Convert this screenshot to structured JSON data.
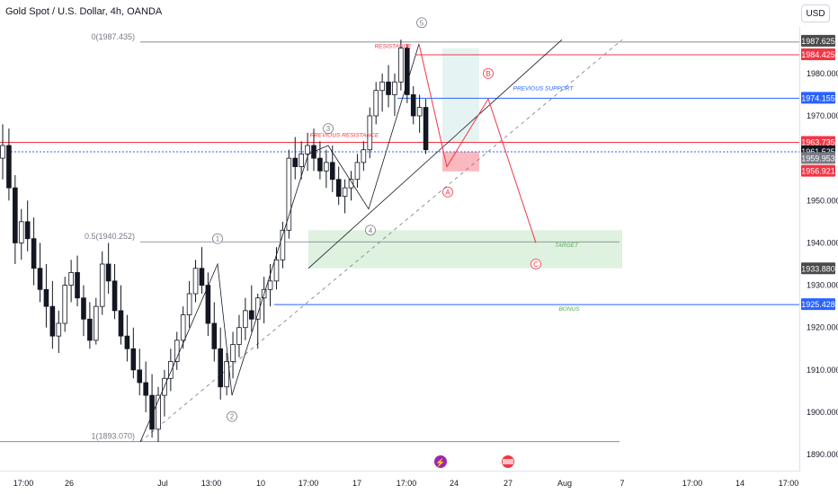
{
  "header": {
    "title": "Gold Spot / U.S. Dollar, 4h, OANDA",
    "currency": "USD"
  },
  "colors": {
    "up": "#ffffff",
    "down": "#131722",
    "red": "#f23645",
    "blue": "#2962ff",
    "green": "#4caf50",
    "grey": "#787b86",
    "black": "#131722"
  },
  "chart_data": {
    "type": "candlestick",
    "ylim": [
      1886,
      1991
    ],
    "y_ticks": [
      "1980.000",
      "1970.000",
      "1950.000",
      "1940.000",
      "1930.000",
      "1920.000",
      "1910.000",
      "1900.000",
      "1890.000"
    ],
    "x_ticks": [
      "17:00",
      "26",
      "Jul",
      "13:00",
      "10",
      "17:00",
      "17",
      "17:00",
      "24",
      "27",
      "Aug",
      "7",
      "17:00",
      "14",
      "17:00"
    ],
    "price_labels": [
      {
        "text": "1987.625",
        "bg": "#4a4a4a"
      },
      {
        "text": "1984.457",
        "bg": "#089981"
      },
      {
        "text": "1984.425",
        "bg": "#f23645"
      },
      {
        "text": "1974.155",
        "bg": "#2962ff"
      },
      {
        "text": "1963.735",
        "bg": "#f23645"
      },
      {
        "text": "1961.525",
        "bg": "#131722"
      },
      {
        "text": "1959.953",
        "bg": "#787b86"
      },
      {
        "text": "1956.921",
        "bg": "#f23645"
      },
      {
        "text": "1933.880",
        "bg": "#4a4a4a"
      },
      {
        "text": "1925.428",
        "bg": "#2962ff"
      }
    ],
    "fib_levels": [
      {
        "label": "0(1987.435)",
        "value": 1987.435
      },
      {
        "label": "0.5(1940.252)",
        "value": 1940.252
      },
      {
        "label": "1(1893.070)",
        "value": 1893.07
      }
    ],
    "levels": [
      {
        "value": 1984.425,
        "color": "#f23645"
      },
      {
        "value": 1974.155,
        "color": "#2962ff"
      },
      {
        "value": 1963.735,
        "color": "#f23645"
      },
      {
        "value": 1961.525,
        "color": "#2962ff"
      },
      {
        "value": 1925.428,
        "color": "#2962ff"
      }
    ],
    "annotations": [
      "RESISTANCE",
      "PREVIOUS SUPPORT",
      "PREVIOUS RESISTANCE",
      "TARGET",
      "BONUS"
    ],
    "wave_labels": [
      "1",
      "2",
      "3",
      "4",
      "5",
      "A",
      "B",
      "C"
    ],
    "candles": [
      [
        1960,
        1968,
        1955,
        1963
      ],
      [
        1963,
        1967,
        1950,
        1953
      ],
      [
        1953,
        1956,
        1935,
        1940
      ],
      [
        1940,
        1948,
        1936,
        1945
      ],
      [
        1945,
        1950,
        1938,
        1941
      ],
      [
        1941,
        1946,
        1930,
        1934
      ],
      [
        1934,
        1940,
        1926,
        1929
      ],
      [
        1929,
        1935,
        1920,
        1925
      ],
      [
        1925,
        1931,
        1915,
        1918
      ],
      [
        1918,
        1924,
        1914,
        1921
      ],
      [
        1921,
        1932,
        1919,
        1930
      ],
      [
        1930,
        1936,
        1926,
        1933
      ],
      [
        1933,
        1937,
        1925,
        1927
      ],
      [
        1927,
        1930,
        1918,
        1922
      ],
      [
        1922,
        1926,
        1915,
        1917
      ],
      [
        1917,
        1927,
        1916,
        1925
      ],
      [
        1925,
        1938,
        1923,
        1935
      ],
      [
        1935,
        1940,
        1928,
        1931
      ],
      [
        1931,
        1935,
        1922,
        1924
      ],
      [
        1924,
        1930,
        1916,
        1918
      ],
      [
        1918,
        1923,
        1912,
        1915
      ],
      [
        1915,
        1920,
        1908,
        1910
      ],
      [
        1910,
        1915,
        1904,
        1907
      ],
      [
        1907,
        1912,
        1900,
        1904
      ],
      [
        1904,
        1909,
        1894,
        1896
      ],
      [
        1896,
        1906,
        1893,
        1904
      ],
      [
        1904,
        1910,
        1899,
        1908
      ],
      [
        1908,
        1915,
        1905,
        1912
      ],
      [
        1912,
        1919,
        1910,
        1917
      ],
      [
        1917,
        1925,
        1915,
        1923
      ],
      [
        1923,
        1931,
        1920,
        1928
      ],
      [
        1928,
        1936,
        1926,
        1934
      ],
      [
        1934,
        1939,
        1928,
        1930
      ],
      [
        1930,
        1933,
        1918,
        1921
      ],
      [
        1921,
        1926,
        1912,
        1915
      ],
      [
        1915,
        1920,
        1903,
        1906
      ],
      [
        1906,
        1914,
        1904,
        1912
      ],
      [
        1912,
        1919,
        1908,
        1916
      ],
      [
        1916,
        1923,
        1913,
        1920
      ],
      [
        1920,
        1927,
        1917,
        1924
      ],
      [
        1924,
        1930,
        1919,
        1922
      ],
      [
        1922,
        1928,
        1915,
        1927
      ],
      [
        1927,
        1932,
        1921,
        1929
      ],
      [
        1929,
        1935,
        1925,
        1931
      ],
      [
        1931,
        1939,
        1929,
        1936
      ],
      [
        1936,
        1945,
        1934,
        1943
      ],
      [
        1943,
        1962,
        1941,
        1960
      ],
      [
        1960,
        1965,
        1955,
        1958
      ],
      [
        1958,
        1964,
        1955,
        1961
      ],
      [
        1961,
        1966,
        1957,
        1963
      ],
      [
        1963,
        1967,
        1957,
        1960
      ],
      [
        1960,
        1964,
        1955,
        1957
      ],
      [
        1957,
        1962,
        1953,
        1959
      ],
      [
        1959,
        1963,
        1952,
        1955
      ],
      [
        1955,
        1958,
        1949,
        1951
      ],
      [
        1951,
        1955,
        1947,
        1953
      ],
      [
        1953,
        1957,
        1950,
        1955
      ],
      [
        1955,
        1961,
        1953,
        1959
      ],
      [
        1959,
        1964,
        1957,
        1962
      ],
      [
        1962,
        1972,
        1960,
        1970
      ],
      [
        1970,
        1978,
        1968,
        1976
      ],
      [
        1976,
        1980,
        1971,
        1978
      ],
      [
        1978,
        1982,
        1972,
        1975
      ],
      [
        1975,
        1980,
        1970,
        1978
      ],
      [
        1978,
        1988,
        1976,
        1986
      ],
      [
        1986,
        1987,
        1973,
        1975
      ],
      [
        1975,
        1977,
        1968,
        1970
      ],
      [
        1970,
        1975,
        1966,
        1972
      ],
      [
        1972,
        1974,
        1961,
        1962
      ]
    ]
  }
}
